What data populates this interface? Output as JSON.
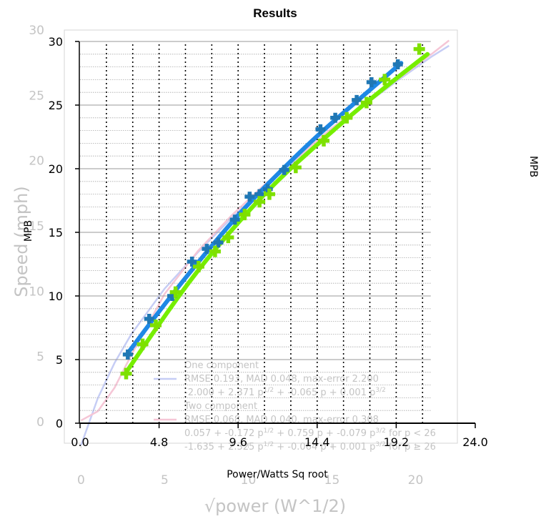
{
  "chart_data": [
    {
      "type": "scatter",
      "title": "Results",
      "xlabel": "Power/Watts Sq root",
      "ylabel": "MPB",
      "right_ylabel": "MPB",
      "xlim": [
        0,
        24
      ],
      "ylim": [
        0,
        30
      ],
      "xticks": [
        "0.0",
        "4.8",
        "9.6",
        "14.4",
        "19.2",
        "24.0"
      ],
      "yticks": [
        "0",
        "5",
        "10",
        "15",
        "20",
        "25",
        "30"
      ],
      "grid": true,
      "series": [
        {
          "name": "",
          "color": "#1f77b4",
          "marker": "plus",
          "x": [
            2.9,
            4.2,
            5.6,
            6.8,
            7.7,
            8.4,
            9.4,
            10.3,
            10.9,
            11.4,
            12.4,
            14.6,
            15.5,
            16.8,
            17.7,
            19.3
          ],
          "y": [
            5.4,
            8.2,
            10.0,
            12.7,
            13.7,
            14.2,
            16.0,
            17.8,
            18.0,
            18.4,
            19.9,
            23.1,
            24.0,
            25.4,
            26.8,
            28.2
          ]
        },
        {
          "name": "",
          "color": "#7ee000",
          "marker": "plus",
          "x": [
            2.8,
            3.8,
            4.6,
            5.8,
            7.2,
            8.2,
            9.0,
            10.0,
            10.9,
            11.5,
            13.1,
            14.8,
            16.2,
            17.4,
            18.5,
            20.6
          ],
          "y": [
            3.9,
            6.2,
            7.7,
            10.3,
            12.3,
            13.5,
            14.6,
            16.4,
            17.4,
            18.0,
            20.1,
            22.2,
            24.0,
            25.2,
            27.0,
            29.4
          ]
        },
        {
          "name": "",
          "type": "line",
          "color": "#1e88e5",
          "x": [
            2.9,
            4.8,
            7.0,
            9.6,
            12.0,
            14.4,
            16.8,
            19.5
          ],
          "y": [
            5.5,
            8.8,
            12.4,
            16.4,
            19.6,
            22.6,
            25.3,
            28.3
          ]
        },
        {
          "name": "",
          "type": "line",
          "color": "#76ee00",
          "x": [
            2.8,
            4.8,
            7.0,
            9.6,
            12.0,
            14.4,
            16.8,
            19.2,
            21.1
          ],
          "y": [
            4.0,
            7.8,
            11.8,
            15.8,
            19.1,
            21.9,
            24.6,
            27.1,
            29.0
          ]
        }
      ]
    },
    {
      "type": "line",
      "xlabel": "√power (W^1/2)",
      "ylabel": "Speed (mph)",
      "xlim": [
        -1,
        22.5
      ],
      "ylim": [
        0,
        30
      ],
      "xticks": [
        "0",
        "5",
        "10",
        "15",
        "20"
      ],
      "yticks": [
        "0",
        "5",
        "10",
        "15",
        "20",
        "25",
        "30"
      ],
      "legend": {
        "position": "lower-right",
        "entries": [
          {
            "title": "One component",
            "color": "#c6cdf5",
            "lines": [
              "RMSE 0.193, MAD 0.048, max-error 2.200",
              "-2.000 + 2.371 p^1/2 + -0.065 p + 0.001 p^3/2"
            ]
          },
          {
            "title": "Two component",
            "color": "#f5c6d6",
            "lines": [
              "RMSE 0.068, MAD 0.040, max-error 0.308",
              "0.057 + -0.172 p^1/2 + 0.759 p + -0.079 p^3/2 for p < 26",
              "-1.635 + 2.325 p^1/2 + -0.064 p + 0.001 p^3/2 for p ≥ 26"
            ]
          }
        ]
      },
      "series": [
        {
          "name": "",
          "color": "#c6cdf5",
          "x": [
            0,
            1,
            2,
            3,
            5,
            7,
            9,
            11,
            13,
            15,
            17,
            19,
            21,
            22
          ],
          "y": [
            -1.8,
            1.8,
            4.5,
            6.7,
            10.2,
            13.0,
            15.6,
            18.0,
            20.2,
            22.3,
            24.3,
            26.2,
            28.0,
            28.8
          ]
        },
        {
          "name": "",
          "color": "#f5c6d6",
          "x": [
            0,
            1,
            2,
            3,
            5,
            7,
            9,
            11,
            13,
            15,
            17,
            19,
            21,
            22
          ],
          "y": [
            0.1,
            0.8,
            2.6,
            5.1,
            9.8,
            13.1,
            15.8,
            18.2,
            20.3,
            22.5,
            24.4,
            26.3,
            28.2,
            29.2
          ]
        }
      ]
    }
  ]
}
